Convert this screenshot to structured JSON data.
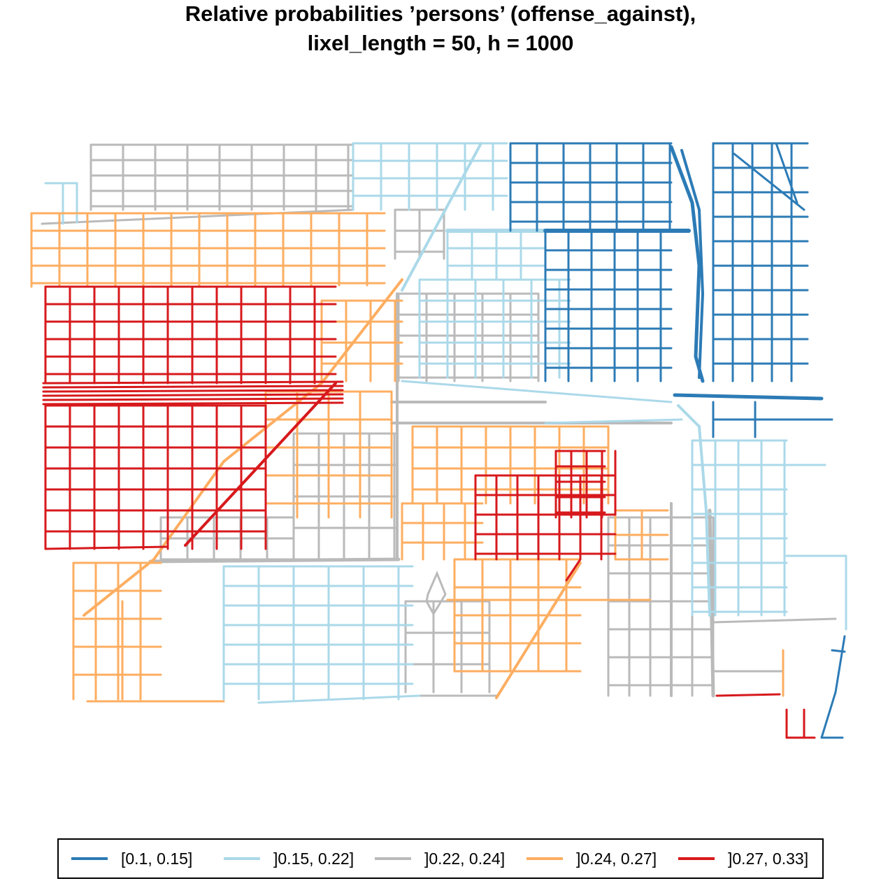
{
  "title": {
    "line1": "Relative probabilities ’persons’ (offense_against),",
    "line2": "lixel_length = 50, h = 1000"
  },
  "legend": {
    "items": [
      {
        "label": "[0.1, 0.15]",
        "color": "#2c7bb6"
      },
      {
        "label": "]0.15, 0.22]",
        "color": "#abd9e9"
      },
      {
        "label": "]0.22, 0.24]",
        "color": "#bababa"
      },
      {
        "label": "]0.24, 0.27]",
        "color": "#fdae61"
      },
      {
        "label": "]0.27, 0.33]",
        "color": "#d7191c"
      }
    ]
  }
}
